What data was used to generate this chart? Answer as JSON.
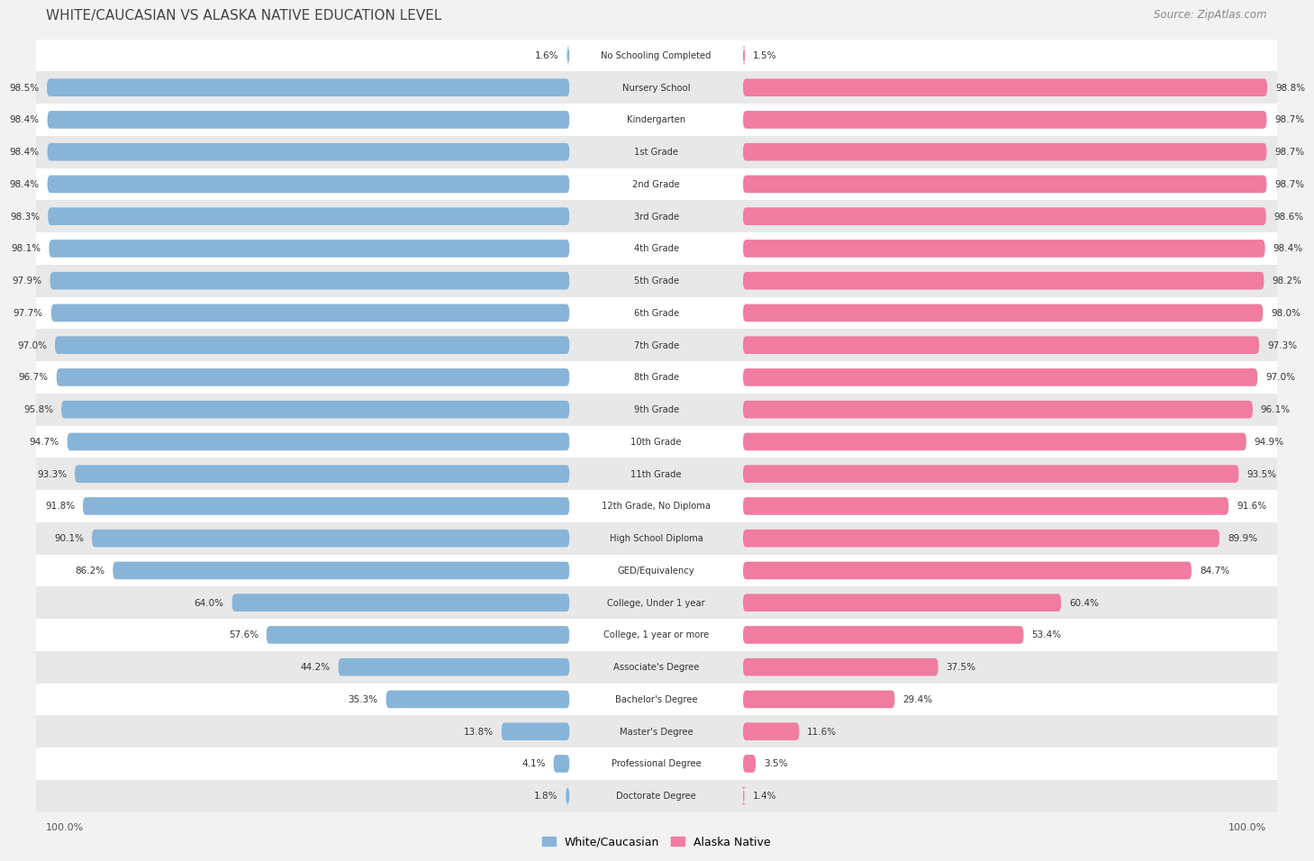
{
  "title": "WHITE/CAUCASIAN VS ALASKA NATIVE EDUCATION LEVEL",
  "source": "Source: ZipAtlas.com",
  "categories": [
    "No Schooling Completed",
    "Nursery School",
    "Kindergarten",
    "1st Grade",
    "2nd Grade",
    "3rd Grade",
    "4th Grade",
    "5th Grade",
    "6th Grade",
    "7th Grade",
    "8th Grade",
    "9th Grade",
    "10th Grade",
    "11th Grade",
    "12th Grade, No Diploma",
    "High School Diploma",
    "GED/Equivalency",
    "College, Under 1 year",
    "College, 1 year or more",
    "Associate's Degree",
    "Bachelor's Degree",
    "Master's Degree",
    "Professional Degree",
    "Doctorate Degree"
  ],
  "white_values": [
    1.6,
    98.5,
    98.4,
    98.4,
    98.4,
    98.3,
    98.1,
    97.9,
    97.7,
    97.0,
    96.7,
    95.8,
    94.7,
    93.3,
    91.8,
    90.1,
    86.2,
    64.0,
    57.6,
    44.2,
    35.3,
    13.8,
    4.1,
    1.8
  ],
  "native_values": [
    1.5,
    98.8,
    98.7,
    98.7,
    98.7,
    98.6,
    98.4,
    98.2,
    98.0,
    97.3,
    97.0,
    96.1,
    94.9,
    93.5,
    91.6,
    89.9,
    84.7,
    60.4,
    53.4,
    37.5,
    29.4,
    11.6,
    3.5,
    1.4
  ],
  "white_color": "#88b4d8",
  "native_color": "#f07ca0",
  "bg_color": "#f2f2f2",
  "row_bg_even": "#ffffff",
  "row_bg_odd": "#e8e8e8",
  "legend_white": "White/Caucasian",
  "legend_native": "Alaska Native"
}
